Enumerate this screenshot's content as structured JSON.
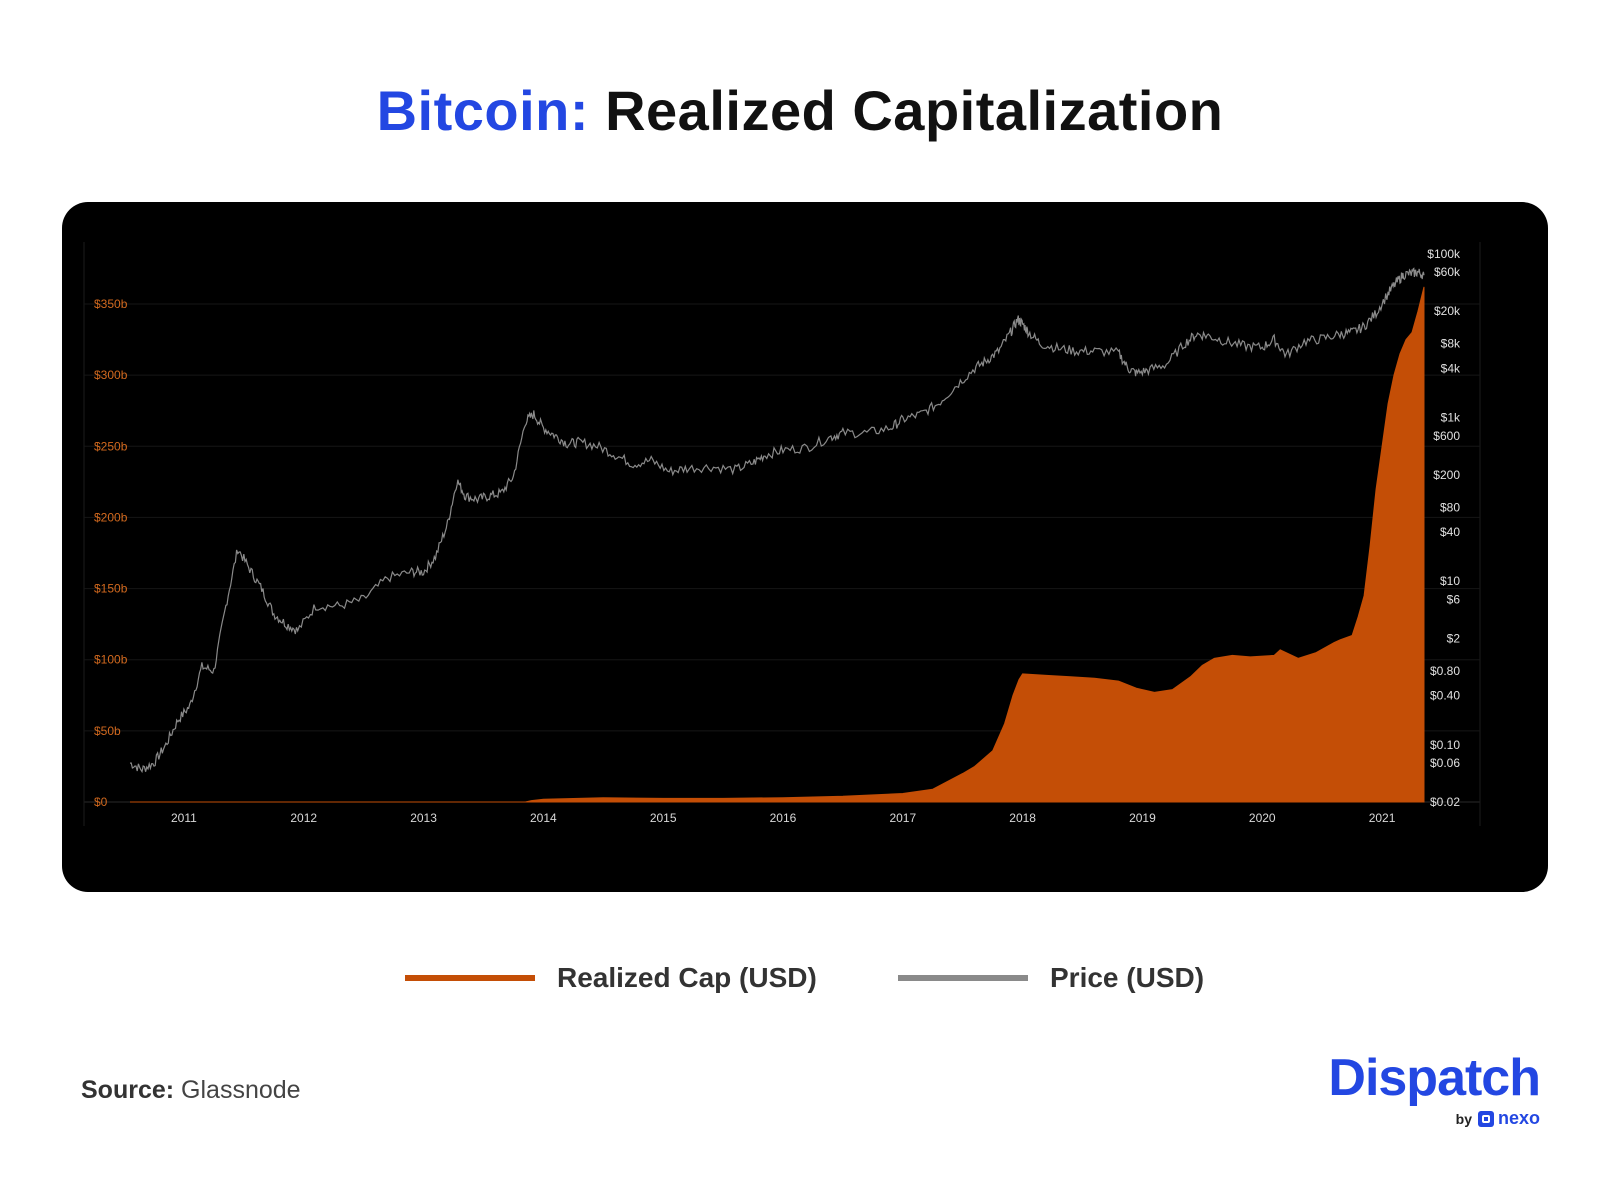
{
  "title": {
    "accent": "Bitcoin:",
    "main": "Realized Capitalization"
  },
  "legend": {
    "realized_label": "Realized Cap (USD)",
    "price_label": "Price (USD)"
  },
  "source": {
    "key": "Source:",
    "value": "Glassnode"
  },
  "brand": {
    "name": "Dispatch",
    "by": "by",
    "partner": "nexo"
  },
  "colors": {
    "title_accent": "#2347e2",
    "realized_cap": "#c44e06",
    "price": "#8a8a8a",
    "left_axis_text": "#d2691e",
    "right_axis_text": "#e0e0e0",
    "chart_background": "#000000"
  },
  "chart_data": {
    "type": "area",
    "title": "Bitcoin: Realized Capitalization",
    "x_ticks": [
      "2011",
      "2012",
      "2013",
      "2014",
      "2015",
      "2016",
      "2017",
      "2018",
      "2019",
      "2020",
      "2021"
    ],
    "x_range": [
      2010.55,
      2021.35
    ],
    "left_axis": {
      "ticks": [
        "$0",
        "$50b",
        "$100b",
        "$150b",
        "$200b",
        "$250b",
        "$300b",
        "$350b"
      ],
      "range": [
        0,
        350
      ],
      "unit": "billion USD"
    },
    "right_axis": {
      "scale": "log",
      "ticks": [
        {
          "label": "$0.02",
          "value": 0.02
        },
        {
          "label": "$0.06",
          "value": 0.06
        },
        {
          "label": "$0.10",
          "value": 0.1
        },
        {
          "label": "$0.40",
          "value": 0.4
        },
        {
          "label": "$0.80",
          "value": 0.8
        },
        {
          "label": "$2",
          "value": 2
        },
        {
          "label": "$6",
          "value": 6
        },
        {
          "label": "$10",
          "value": 10
        },
        {
          "label": "$40",
          "value": 40
        },
        {
          "label": "$80",
          "value": 80
        },
        {
          "label": "$200",
          "value": 200
        },
        {
          "label": "$600",
          "value": 600
        },
        {
          "label": "$1k",
          "value": 1000
        },
        {
          "label": "$4k",
          "value": 4000
        },
        {
          "label": "$8k",
          "value": 8000
        },
        {
          "label": "$20k",
          "value": 20000
        },
        {
          "label": "$60k",
          "value": 60000
        },
        {
          "label": "$100k",
          "value": 100000
        }
      ],
      "range": [
        0.02,
        100000
      ]
    },
    "grid": true,
    "series": [
      {
        "name": "Realized Cap (USD)",
        "axis": "left",
        "style": "area",
        "x": [
          2010.55,
          2013.85,
          2013.9,
          2014.0,
          2014.5,
          2015.0,
          2015.5,
          2016.0,
          2016.5,
          2017.0,
          2017.25,
          2017.5,
          2017.6,
          2017.75,
          2017.85,
          2017.92,
          2017.97,
          2018.0,
          2018.2,
          2018.4,
          2018.6,
          2018.8,
          2018.95,
          2019.1,
          2019.25,
          2019.4,
          2019.5,
          2019.6,
          2019.75,
          2019.9,
          2020.1,
          2020.15,
          2020.3,
          2020.45,
          2020.6,
          2020.65,
          2020.75,
          2020.8,
          2020.85,
          2020.9,
          2020.95,
          2021.0,
          2021.05,
          2021.1,
          2021.15,
          2021.2,
          2021.25,
          2021.3,
          2021.35
        ],
        "values": [
          0,
          0,
          1,
          2,
          3,
          2.5,
          2.5,
          3,
          4,
          6,
          9,
          20,
          25,
          36,
          55,
          75,
          86,
          90,
          89,
          88,
          87,
          85,
          80,
          77,
          79,
          88,
          96,
          101,
          103,
          102,
          103,
          107,
          101,
          105,
          112,
          114,
          117,
          130,
          145,
          180,
          220,
          250,
          280,
          300,
          315,
          325,
          330,
          345,
          362
        ]
      },
      {
        "name": "Price (USD)",
        "axis": "right",
        "style": "line",
        "x": [
          2010.55,
          2010.65,
          2010.75,
          2010.85,
          2010.95,
          2011.05,
          2011.15,
          2011.25,
          2011.35,
          2011.45,
          2011.55,
          2011.65,
          2011.75,
          2011.85,
          2011.95,
          2012.1,
          2012.3,
          2012.5,
          2012.7,
          2012.9,
          2013.0,
          2013.1,
          2013.2,
          2013.28,
          2013.35,
          2013.45,
          2013.55,
          2013.65,
          2013.75,
          2013.85,
          2013.92,
          2014.0,
          2014.1,
          2014.2,
          2014.3,
          2014.45,
          2014.6,
          2014.75,
          2014.9,
          2015.05,
          2015.2,
          2015.4,
          2015.6,
          2015.75,
          2015.85,
          2016.0,
          2016.2,
          2016.4,
          2016.5,
          2016.7,
          2016.9,
          2017.0,
          2017.15,
          2017.3,
          2017.45,
          2017.6,
          2017.7,
          2017.8,
          2017.9,
          2017.96,
          2018.0,
          2018.05,
          2018.15,
          2018.3,
          2018.45,
          2018.6,
          2018.8,
          2018.88,
          2018.95,
          2019.05,
          2019.2,
          2019.35,
          2019.45,
          2019.55,
          2019.7,
          2019.85,
          2020.0,
          2020.1,
          2020.2,
          2020.35,
          2020.5,
          2020.65,
          2020.75,
          2020.85,
          2020.95,
          2021.05,
          2021.12,
          2021.18,
          2021.25,
          2021.3,
          2021.35
        ],
        "values": [
          0.06,
          0.05,
          0.06,
          0.1,
          0.2,
          0.3,
          0.9,
          0.8,
          5,
          25,
          14,
          8,
          4,
          3,
          2.5,
          5,
          5,
          6,
          11,
          13,
          13,
          20,
          50,
          170,
          110,
          100,
          110,
          120,
          190,
          900,
          1100,
          750,
          600,
          480,
          500,
          450,
          350,
          270,
          300,
          220,
          240,
          250,
          230,
          280,
          350,
          400,
          430,
          580,
          650,
          650,
          750,
          950,
          1100,
          1500,
          2500,
          4000,
          5000,
          6500,
          11000,
          16000,
          14000,
          11000,
          8000,
          7000,
          6500,
          6500,
          6200,
          4000,
          3500,
          3800,
          4500,
          8000,
          10500,
          10000,
          8500,
          7500,
          7200,
          9000,
          5800,
          8500,
          9200,
          10500,
          11000,
          13000,
          19000,
          33000,
          45000,
          56000,
          58000,
          60000,
          55000
        ]
      }
    ]
  }
}
